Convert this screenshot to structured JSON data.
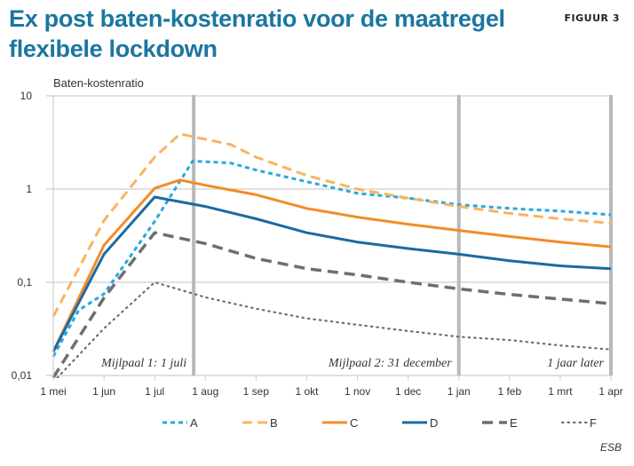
{
  "header": {
    "title": "Ex post baten-kostenratio voor de maatregel flexibele lockdown",
    "figure_label": "FIGUUR 3"
  },
  "source": "ESB",
  "chart_data": {
    "type": "line",
    "title": "Ex post baten-kostenratio voor de maatregel flexibele lockdown",
    "ylabel": "Baten-kostenratio",
    "xlabel": "",
    "yscale": "log",
    "ylim": [
      0.01,
      10
    ],
    "yticks": [
      {
        "value": 10,
        "label": "10"
      },
      {
        "value": 1,
        "label": "1"
      },
      {
        "value": 0.1,
        "label": "0,1"
      },
      {
        "value": 0.01,
        "label": "0,01"
      }
    ],
    "x_unit": "months since 1 mei",
    "xlim": [
      0,
      11
    ],
    "xticks": [
      "1 mei",
      "1 jun",
      "1 jul",
      "1 aug",
      "1 sep",
      "1 okt",
      "1 nov",
      "1 dec",
      "1 jan",
      "1 feb",
      "1 mrt",
      "1 apr"
    ],
    "grid": true,
    "legend_position": "bottom",
    "milestones": [
      {
        "x": 2.77,
        "label": "Mijlpaal 1: 1 juli"
      },
      {
        "x": 8,
        "label": "Mijlpaal 2: 31 december"
      },
      {
        "x": 11,
        "label": "1 jaar later"
      }
    ],
    "series": [
      {
        "name": "A",
        "color": "#29a8e0",
        "style": "dotted-dash",
        "x": [
          0,
          0.5,
          1,
          2,
          2.75,
          3.5,
          4,
          5,
          6,
          7,
          8,
          9,
          10,
          11
        ],
        "values": [
          0.016,
          0.05,
          0.075,
          0.45,
          2.0,
          1.9,
          1.6,
          1.2,
          0.9,
          0.8,
          0.68,
          0.62,
          0.58,
          0.53
        ]
      },
      {
        "name": "B",
        "color": "#f9b45e",
        "style": "dashed",
        "x": [
          0,
          1,
          2,
          2.5,
          3.5,
          4,
          5,
          6,
          7,
          8,
          9,
          10,
          11
        ],
        "values": [
          0.043,
          0.46,
          2.2,
          3.9,
          3.0,
          2.2,
          1.4,
          1.0,
          0.8,
          0.65,
          0.55,
          0.48,
          0.43
        ]
      },
      {
        "name": "C",
        "color": "#f28c28",
        "style": "solid",
        "x": [
          0,
          1,
          2,
          2.5,
          3,
          4,
          5,
          6,
          7,
          8,
          9,
          10,
          11
        ],
        "values": [
          0.018,
          0.25,
          1.02,
          1.25,
          1.1,
          0.87,
          0.62,
          0.5,
          0.42,
          0.36,
          0.31,
          0.27,
          0.24
        ]
      },
      {
        "name": "D",
        "color": "#1c6aa0",
        "style": "solid",
        "x": [
          0,
          1,
          2,
          3,
          4,
          5,
          6,
          7,
          8,
          9,
          10,
          11
        ],
        "values": [
          0.018,
          0.2,
          0.82,
          0.65,
          0.48,
          0.34,
          0.27,
          0.23,
          0.2,
          0.17,
          0.15,
          0.14
        ]
      },
      {
        "name": "E",
        "color": "#6d6e70",
        "style": "long-dash",
        "x": [
          0,
          1,
          2,
          3,
          4,
          5,
          6,
          7,
          8,
          9,
          10,
          11
        ],
        "values": [
          0.0095,
          0.068,
          0.34,
          0.26,
          0.18,
          0.14,
          0.12,
          0.1,
          0.085,
          0.074,
          0.066,
          0.059
        ]
      },
      {
        "name": "F",
        "color": "#6d6e70",
        "style": "dotted",
        "x": [
          0,
          1,
          2,
          3,
          4,
          5,
          6,
          7,
          8,
          9,
          10,
          11
        ],
        "values": [
          0.0085,
          0.032,
          0.1,
          0.069,
          0.052,
          0.041,
          0.035,
          0.03,
          0.026,
          0.024,
          0.021,
          0.019
        ]
      }
    ]
  }
}
